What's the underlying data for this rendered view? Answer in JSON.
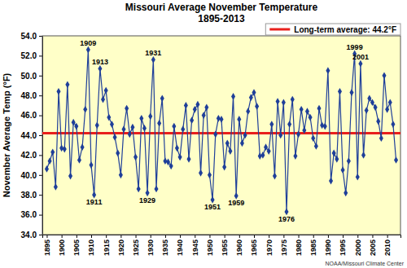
{
  "chart_data": {
    "type": "line",
    "title": "Missouri Average November Temperature",
    "subtitle": "1895-2013",
    "y_label": "November Average Temp (°F)",
    "source": "NOAA/Missouri Climate Center",
    "x": [
      1895,
      1896,
      1897,
      1898,
      1899,
      1900,
      1901,
      1902,
      1903,
      1904,
      1905,
      1906,
      1907,
      1908,
      1909,
      1910,
      1911,
      1912,
      1913,
      1914,
      1915,
      1916,
      1917,
      1918,
      1919,
      1920,
      1921,
      1922,
      1923,
      1924,
      1925,
      1926,
      1927,
      1928,
      1929,
      1930,
      1931,
      1932,
      1933,
      1934,
      1935,
      1936,
      1937,
      1938,
      1939,
      1940,
      1941,
      1942,
      1943,
      1944,
      1945,
      1946,
      1947,
      1948,
      1949,
      1950,
      1951,
      1952,
      1953,
      1954,
      1955,
      1956,
      1957,
      1958,
      1959,
      1960,
      1961,
      1962,
      1963,
      1964,
      1965,
      1966,
      1967,
      1968,
      1969,
      1970,
      1971,
      1972,
      1973,
      1974,
      1975,
      1976,
      1977,
      1978,
      1979,
      1980,
      1981,
      1982,
      1983,
      1984,
      1985,
      1986,
      1987,
      1988,
      1989,
      1990,
      1991,
      1992,
      1993,
      1994,
      1995,
      1996,
      1997,
      1998,
      1999,
      2000,
      2001,
      2002,
      2003,
      2004,
      2005,
      2006,
      2007,
      2008,
      2009,
      2010,
      2011,
      2012,
      2013
    ],
    "series": [
      {
        "color": "#1f3f99",
        "marker": "diamond",
        "values": [
          40.6,
          41.4,
          42.3,
          38.8,
          48.4,
          42.7,
          42.6,
          49.1,
          39.9,
          45.3,
          44.9,
          41.5,
          42.8,
          46.6,
          52.6,
          41.0,
          38.0,
          45.0,
          50.7,
          47.6,
          48.5,
          45.8,
          45.1,
          43.8,
          42.2,
          40.0,
          44.6,
          46.7,
          44.1,
          44.8,
          41.8,
          38.6,
          45.7,
          44.7,
          38.2,
          45.9,
          51.6,
          38.6,
          45.2,
          47.7,
          41.4,
          41.3,
          40.9,
          44.9,
          42.7,
          41.8,
          44.6,
          47.0,
          41.6,
          45.5,
          46.6,
          47.1,
          40.2,
          46.0,
          46.8,
          40.0,
          37.5,
          44.1,
          45.7,
          45.6,
          40.8,
          43.2,
          42.4,
          47.9,
          37.9,
          45.6,
          43.2,
          44.0,
          46.4,
          47.8,
          48.3,
          46.9,
          41.9,
          42.0,
          42.8,
          42.4,
          45.1,
          39.9,
          47.4,
          44.0,
          47.3,
          36.3,
          45.1,
          47.6,
          41.9,
          44.1,
          46.6,
          44.5,
          46.4,
          45.8,
          43.7,
          42.9,
          46.7,
          45.0,
          44.9,
          50.5,
          39.4,
          42.2,
          41.6,
          48.4,
          40.5,
          38.2,
          41.4,
          48.3,
          52.2,
          39.8,
          51.2,
          42.0,
          46.5,
          47.7,
          47.3,
          46.8,
          45.4,
          43.7,
          50.0,
          46.6,
          47.3,
          45.1,
          41.5
        ]
      }
    ],
    "reference_lines": [
      {
        "name": "Long-term average: 44.2°F",
        "value": 44.2,
        "color": "#e8201c"
      }
    ],
    "annotations": [
      {
        "text": "1909",
        "x": 1909
      },
      {
        "text": "1913",
        "x": 1913
      },
      {
        "text": "1911",
        "x": 1911
      },
      {
        "text": "1931",
        "x": 1931
      },
      {
        "text": "1929",
        "x": 1929
      },
      {
        "text": "1951",
        "x": 1951
      },
      {
        "text": "1959",
        "x": 1959
      },
      {
        "text": "1976",
        "x": 1976
      },
      {
        "text": "1999",
        "x": 1999
      },
      {
        "text": "2001",
        "x": 2001
      }
    ],
    "xlim": [
      1893.5,
      2014.5
    ],
    "xticks": [
      1895,
      1900,
      1905,
      1910,
      1915,
      1920,
      1925,
      1930,
      1935,
      1940,
      1945,
      1950,
      1955,
      1960,
      1965,
      1970,
      1975,
      1980,
      1985,
      1990,
      1995,
      2000,
      2005,
      2010
    ],
    "ylim": [
      34,
      54
    ],
    "yticks": [
      {
        "value": 34,
        "label": "34.0"
      },
      {
        "value": 36,
        "label": "36.0"
      },
      {
        "value": 38,
        "label": "38.0"
      },
      {
        "value": 40,
        "label": "40.0"
      },
      {
        "value": 42,
        "label": "42.0"
      },
      {
        "value": 44,
        "label": "44.0"
      },
      {
        "value": 46,
        "label": "46.0"
      },
      {
        "value": 48,
        "label": "48.0"
      },
      {
        "value": 50,
        "label": "50.0"
      },
      {
        "value": 52,
        "label": "52.0"
      },
      {
        "value": 54,
        "label": "54.0"
      }
    ],
    "grid": false,
    "legend": "top-right"
  }
}
